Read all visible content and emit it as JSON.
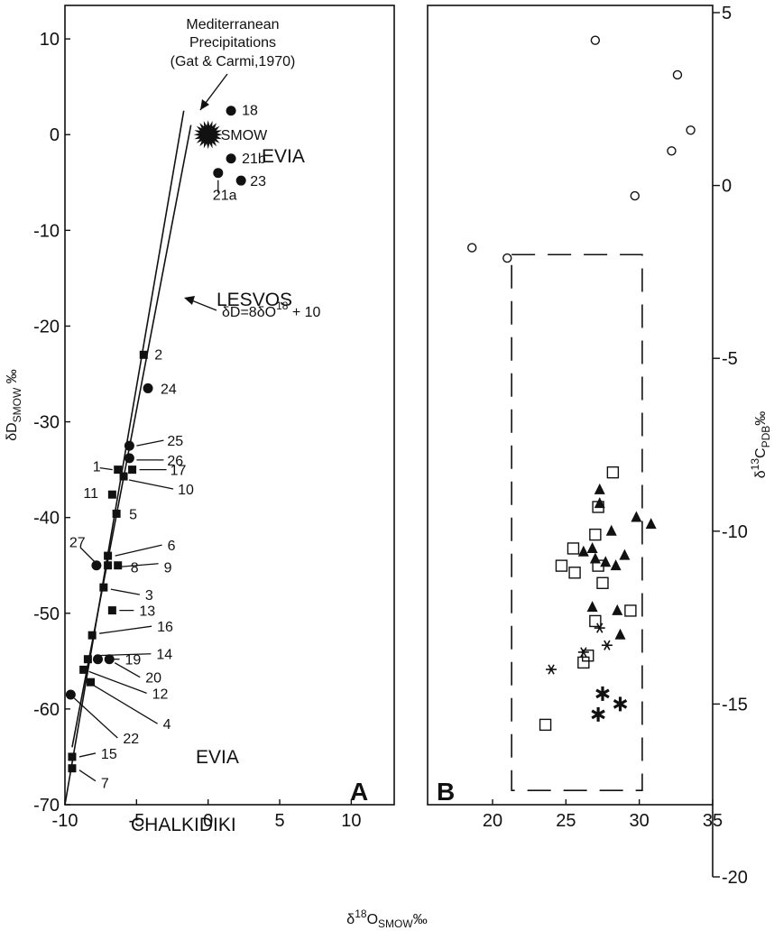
{
  "chart_data": [
    {
      "panel": "A",
      "type": "scatter",
      "xlabel": "δ18OSMOW ‰",
      "ylabel": "δDSMOW ‰",
      "xlim": [
        -10,
        13
      ],
      "ylim": [
        -70,
        13.5
      ],
      "xticks": [
        "-10",
        "-5",
        "0",
        "5",
        "10"
      ],
      "yticks": [
        "10",
        "0",
        "-10",
        "-20",
        "-30",
        "-40",
        "-50",
        "-60",
        "-70"
      ],
      "panel_label": "A",
      "region_labels": [
        "EVIA",
        "LESVOS",
        "EVIA",
        "CHALKIDIKI"
      ],
      "annotations": {
        "mediterranean_line1": "Mediterranean",
        "mediterranean_line2": "Precipitations",
        "mediterranean_line3": "(Gat & Carmi,1970)",
        "meteoric_line": "δD=8δO18 + 10",
        "smow": "SMOW"
      },
      "lines": [
        {
          "name": "mediterranean-precipitation-line",
          "points": [
            [
              -10,
              -70
            ],
            [
              -1.7,
              2.5
            ]
          ]
        },
        {
          "name": "global-meteoric-water-line",
          "points": [
            [
              -9.5,
              -64.0
            ],
            [
              -1.2,
              1.0
            ]
          ]
        }
      ],
      "smow_point": {
        "x": 0,
        "y": 0
      },
      "points": [
        {
          "id": "18",
          "x": 1.6,
          "y": 2.5,
          "marker": "circle"
        },
        {
          "id": "21b",
          "x": 1.6,
          "y": -2.5,
          "marker": "circle"
        },
        {
          "id": "21a",
          "x": 0.7,
          "y": -4.0,
          "marker": "circle"
        },
        {
          "id": "23",
          "x": 2.3,
          "y": -4.8,
          "marker": "circle"
        },
        {
          "id": "2",
          "x": -4.5,
          "y": -23.0,
          "marker": "square"
        },
        {
          "id": "24",
          "x": -4.2,
          "y": -26.5,
          "marker": "circle"
        },
        {
          "id": "25",
          "x": -5.5,
          "y": -32.5,
          "marker": "circle"
        },
        {
          "id": "26",
          "x": -5.5,
          "y": -33.8,
          "marker": "circle"
        },
        {
          "id": "1",
          "x": -6.3,
          "y": -35.0,
          "marker": "square"
        },
        {
          "id": "17",
          "x": -5.3,
          "y": -35.0,
          "marker": "square"
        },
        {
          "id": "10",
          "x": -5.9,
          "y": -35.7,
          "marker": "square"
        },
        {
          "id": "11",
          "x": -6.7,
          "y": -37.6,
          "marker": "square"
        },
        {
          "id": "5",
          "x": -6.4,
          "y": -39.6,
          "marker": "square"
        },
        {
          "id": "6",
          "x": -7.0,
          "y": -44.0,
          "marker": "square"
        },
        {
          "id": "27",
          "x": -7.8,
          "y": -45.0,
          "marker": "circle"
        },
        {
          "id": "9",
          "x": -7.0,
          "y": -45.0,
          "marker": "square"
        },
        {
          "id": "8",
          "x": -6.3,
          "y": -45.0,
          "marker": "square"
        },
        {
          "id": "3",
          "x": -7.3,
          "y": -47.3,
          "marker": "square"
        },
        {
          "id": "13",
          "x": -6.7,
          "y": -49.7,
          "marker": "square"
        },
        {
          "id": "16",
          "x": -8.1,
          "y": -52.3,
          "marker": "square"
        },
        {
          "id": "14",
          "x": -8.4,
          "y": -54.8,
          "marker": "square"
        },
        {
          "id": "19",
          "x": -7.7,
          "y": -54.8,
          "marker": "circle"
        },
        {
          "id": "20",
          "x": -6.9,
          "y": -54.8,
          "marker": "circle"
        },
        {
          "id": "12",
          "x": -8.7,
          "y": -55.9,
          "marker": "square"
        },
        {
          "id": "4",
          "x": -8.2,
          "y": -57.2,
          "marker": "square"
        },
        {
          "id": "22",
          "x": -9.6,
          "y": -58.5,
          "marker": "circle"
        },
        {
          "id": "15",
          "x": -9.5,
          "y": -65.0,
          "marker": "square"
        },
        {
          "id": "7",
          "x": -9.5,
          "y": -66.2,
          "marker": "square"
        }
      ]
    },
    {
      "panel": "B",
      "type": "scatter",
      "xlabel": "δ18OSMOW ‰",
      "ylabel": "δ13CPDB ‰",
      "xlim": [
        13,
        35
      ],
      "ylim": [
        -20,
        5
      ],
      "xticks": [
        "20",
        "25",
        "30",
        "35"
      ],
      "yticks": [
        "5",
        "0",
        "-5",
        "-10",
        "-15",
        "-20"
      ],
      "panel_label": "B",
      "dashed_box": {
        "x": [
          21.3,
          30.2
        ],
        "y": [
          -17.5,
          -2.0
        ]
      },
      "series": [
        {
          "marker": "open-circle",
          "x": [
            27.0,
            32.6,
            32.2,
            33.5,
            29.7,
            18.6,
            21.0
          ],
          "y": [
            4.2,
            3.2,
            1.0,
            1.6,
            -0.3,
            -1.8,
            -2.1
          ]
        },
        {
          "marker": "open-square",
          "x": [
            28.2,
            27.2,
            25.5,
            27.0,
            24.7,
            25.6,
            27.2,
            27.5,
            27.0,
            29.4,
            26.5,
            26.2,
            23.6
          ],
          "y": [
            -8.3,
            -9.3,
            -10.5,
            -10.1,
            -11.0,
            -11.2,
            -11.0,
            -11.5,
            -12.6,
            -12.3,
            -13.6,
            -13.8,
            -15.6
          ]
        },
        {
          "marker": "filled-triangle",
          "x": [
            27.3,
            27.3,
            28.1,
            29.8,
            30.8,
            26.2,
            26.8,
            27.0,
            27.7,
            28.4,
            29.0,
            26.8,
            28.5,
            28.7
          ],
          "y": [
            -8.8,
            -9.2,
            -10.0,
            -9.6,
            -9.8,
            -10.6,
            -10.5,
            -10.8,
            -10.9,
            -11.0,
            -10.7,
            -12.2,
            -12.3,
            -13.0
          ]
        },
        {
          "marker": "star",
          "x": [
            27.3,
            27.8,
            26.2,
            24.0
          ],
          "y": [
            -12.8,
            -13.3,
            -13.5,
            -14.0
          ]
        },
        {
          "marker": "bold-asterisk",
          "x": [
            27.5,
            28.7,
            27.2
          ],
          "y": [
            -14.7,
            -15.0,
            -15.3
          ]
        }
      ]
    }
  ]
}
